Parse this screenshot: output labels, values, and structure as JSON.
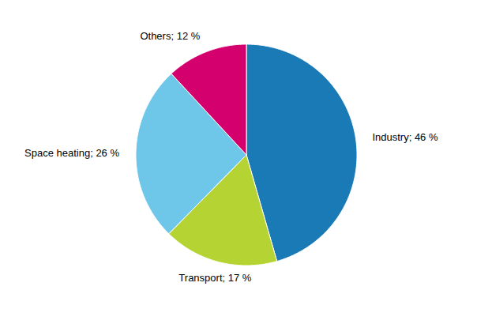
{
  "chart_data": {
    "type": "pie",
    "categories": [
      "Industry",
      "Transport",
      "Space heating",
      "Others"
    ],
    "values": [
      46,
      17,
      26,
      12
    ],
    "value_labels": [
      "Industry; 46 %",
      "Transport; 17 %",
      "Space heating; 26 %",
      "Others; 12 %"
    ],
    "colors": [
      "#1a7ab5",
      "#b5d433",
      "#6ec6e8",
      "#d4006e"
    ],
    "data_labels": true
  }
}
